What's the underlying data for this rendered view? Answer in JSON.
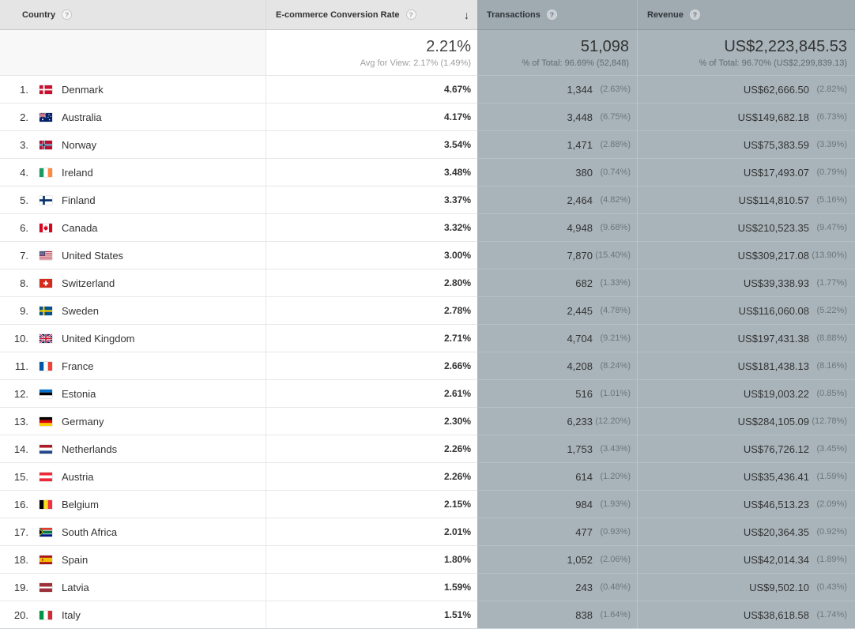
{
  "ui": {
    "help_glyph": "?",
    "sort_desc_glyph": "↓"
  },
  "colors": {
    "header_light_bg": "#e5e5e5",
    "metric_header_bg": "#9faab1",
    "metric_cell_bg": "#a9b4ba",
    "summary_left_bg": "#f8f8f8",
    "row_text": "#333333",
    "percent_text": "#6a767c"
  },
  "columns": [
    {
      "label": "Country"
    },
    {
      "label": "E-commerce Conversion Rate",
      "sorted": "desc"
    },
    {
      "label": "Transactions"
    },
    {
      "label": "Revenue"
    }
  ],
  "summary": {
    "conversion_rate": {
      "value": "2.21%",
      "subtext": "Avg for View: 2.17% (1.49%)"
    },
    "transactions": {
      "value": "51,098",
      "subtext": "% of Total: 96.69% (52,848)"
    },
    "revenue": {
      "value": "US$2,223,845.53",
      "subtext": "% of Total: 96.70% (US$2,299,839.13)"
    }
  },
  "rows": [
    {
      "rank": "1.",
      "flag": "flag-denmark",
      "country": "Denmark",
      "conversion_rate": "4.67%",
      "transactions": "1,344",
      "transactions_pct": "(2.63%)",
      "revenue": "US$62,666.50",
      "revenue_pct": "(2.82%)"
    },
    {
      "rank": "2.",
      "flag": "flag-australia",
      "country": "Australia",
      "conversion_rate": "4.17%",
      "transactions": "3,448",
      "transactions_pct": "(6.75%)",
      "revenue": "US$149,682.18",
      "revenue_pct": "(6.73%)"
    },
    {
      "rank": "3.",
      "flag": "flag-norway",
      "country": "Norway",
      "conversion_rate": "3.54%",
      "transactions": "1,471",
      "transactions_pct": "(2.88%)",
      "revenue": "US$75,383.59",
      "revenue_pct": "(3.39%)"
    },
    {
      "rank": "4.",
      "flag": "flag-ireland",
      "country": "Ireland",
      "conversion_rate": "3.48%",
      "transactions": "380",
      "transactions_pct": "(0.74%)",
      "revenue": "US$17,493.07",
      "revenue_pct": "(0.79%)"
    },
    {
      "rank": "5.",
      "flag": "flag-finland",
      "country": "Finland",
      "conversion_rate": "3.37%",
      "transactions": "2,464",
      "transactions_pct": "(4.82%)",
      "revenue": "US$114,810.57",
      "revenue_pct": "(5.16%)"
    },
    {
      "rank": "6.",
      "flag": "flag-canada",
      "country": "Canada",
      "conversion_rate": "3.32%",
      "transactions": "4,948",
      "transactions_pct": "(9.68%)",
      "revenue": "US$210,523.35",
      "revenue_pct": "(9.47%)"
    },
    {
      "rank": "7.",
      "flag": "flag-united-states",
      "country": "United States",
      "conversion_rate": "3.00%",
      "transactions": "7,870",
      "transactions_pct": "(15.40%)",
      "revenue": "US$309,217.08",
      "revenue_pct": "(13.90%)"
    },
    {
      "rank": "8.",
      "flag": "flag-switzerland",
      "country": "Switzerland",
      "conversion_rate": "2.80%",
      "transactions": "682",
      "transactions_pct": "(1.33%)",
      "revenue": "US$39,338.93",
      "revenue_pct": "(1.77%)"
    },
    {
      "rank": "9.",
      "flag": "flag-sweden",
      "country": "Sweden",
      "conversion_rate": "2.78%",
      "transactions": "2,445",
      "transactions_pct": "(4.78%)",
      "revenue": "US$116,060.08",
      "revenue_pct": "(5.22%)"
    },
    {
      "rank": "10.",
      "flag": "flag-united-kingdom",
      "country": "United Kingdom",
      "conversion_rate": "2.71%",
      "transactions": "4,704",
      "transactions_pct": "(9.21%)",
      "revenue": "US$197,431.38",
      "revenue_pct": "(8.88%)"
    },
    {
      "rank": "11.",
      "flag": "flag-france",
      "country": "France",
      "conversion_rate": "2.66%",
      "transactions": "4,208",
      "transactions_pct": "(8.24%)",
      "revenue": "US$181,438.13",
      "revenue_pct": "(8.16%)"
    },
    {
      "rank": "12.",
      "flag": "flag-estonia",
      "country": "Estonia",
      "conversion_rate": "2.61%",
      "transactions": "516",
      "transactions_pct": "(1.01%)",
      "revenue": "US$19,003.22",
      "revenue_pct": "(0.85%)"
    },
    {
      "rank": "13.",
      "flag": "flag-germany",
      "country": "Germany",
      "conversion_rate": "2.30%",
      "transactions": "6,233",
      "transactions_pct": "(12.20%)",
      "revenue": "US$284,105.09",
      "revenue_pct": "(12.78%)"
    },
    {
      "rank": "14.",
      "flag": "flag-netherlands",
      "country": "Netherlands",
      "conversion_rate": "2.26%",
      "transactions": "1,753",
      "transactions_pct": "(3.43%)",
      "revenue": "US$76,726.12",
      "revenue_pct": "(3.45%)"
    },
    {
      "rank": "15.",
      "flag": "flag-austria",
      "country": "Austria",
      "conversion_rate": "2.26%",
      "transactions": "614",
      "transactions_pct": "(1.20%)",
      "revenue": "US$35,436.41",
      "revenue_pct": "(1.59%)"
    },
    {
      "rank": "16.",
      "flag": "flag-belgium",
      "country": "Belgium",
      "conversion_rate": "2.15%",
      "transactions": "984",
      "transactions_pct": "(1.93%)",
      "revenue": "US$46,513.23",
      "revenue_pct": "(2.09%)"
    },
    {
      "rank": "17.",
      "flag": "flag-south-africa",
      "country": "South Africa",
      "conversion_rate": "2.01%",
      "transactions": "477",
      "transactions_pct": "(0.93%)",
      "revenue": "US$20,364.35",
      "revenue_pct": "(0.92%)"
    },
    {
      "rank": "18.",
      "flag": "flag-spain",
      "country": "Spain",
      "conversion_rate": "1.80%",
      "transactions": "1,052",
      "transactions_pct": "(2.06%)",
      "revenue": "US$42,014.34",
      "revenue_pct": "(1.89%)"
    },
    {
      "rank": "19.",
      "flag": "flag-latvia",
      "country": "Latvia",
      "conversion_rate": "1.59%",
      "transactions": "243",
      "transactions_pct": "(0.48%)",
      "revenue": "US$9,502.10",
      "revenue_pct": "(0.43%)"
    },
    {
      "rank": "20.",
      "flag": "flag-italy",
      "country": "Italy",
      "conversion_rate": "1.51%",
      "transactions": "838",
      "transactions_pct": "(1.64%)",
      "revenue": "US$38,618.58",
      "revenue_pct": "(1.74%)"
    }
  ]
}
